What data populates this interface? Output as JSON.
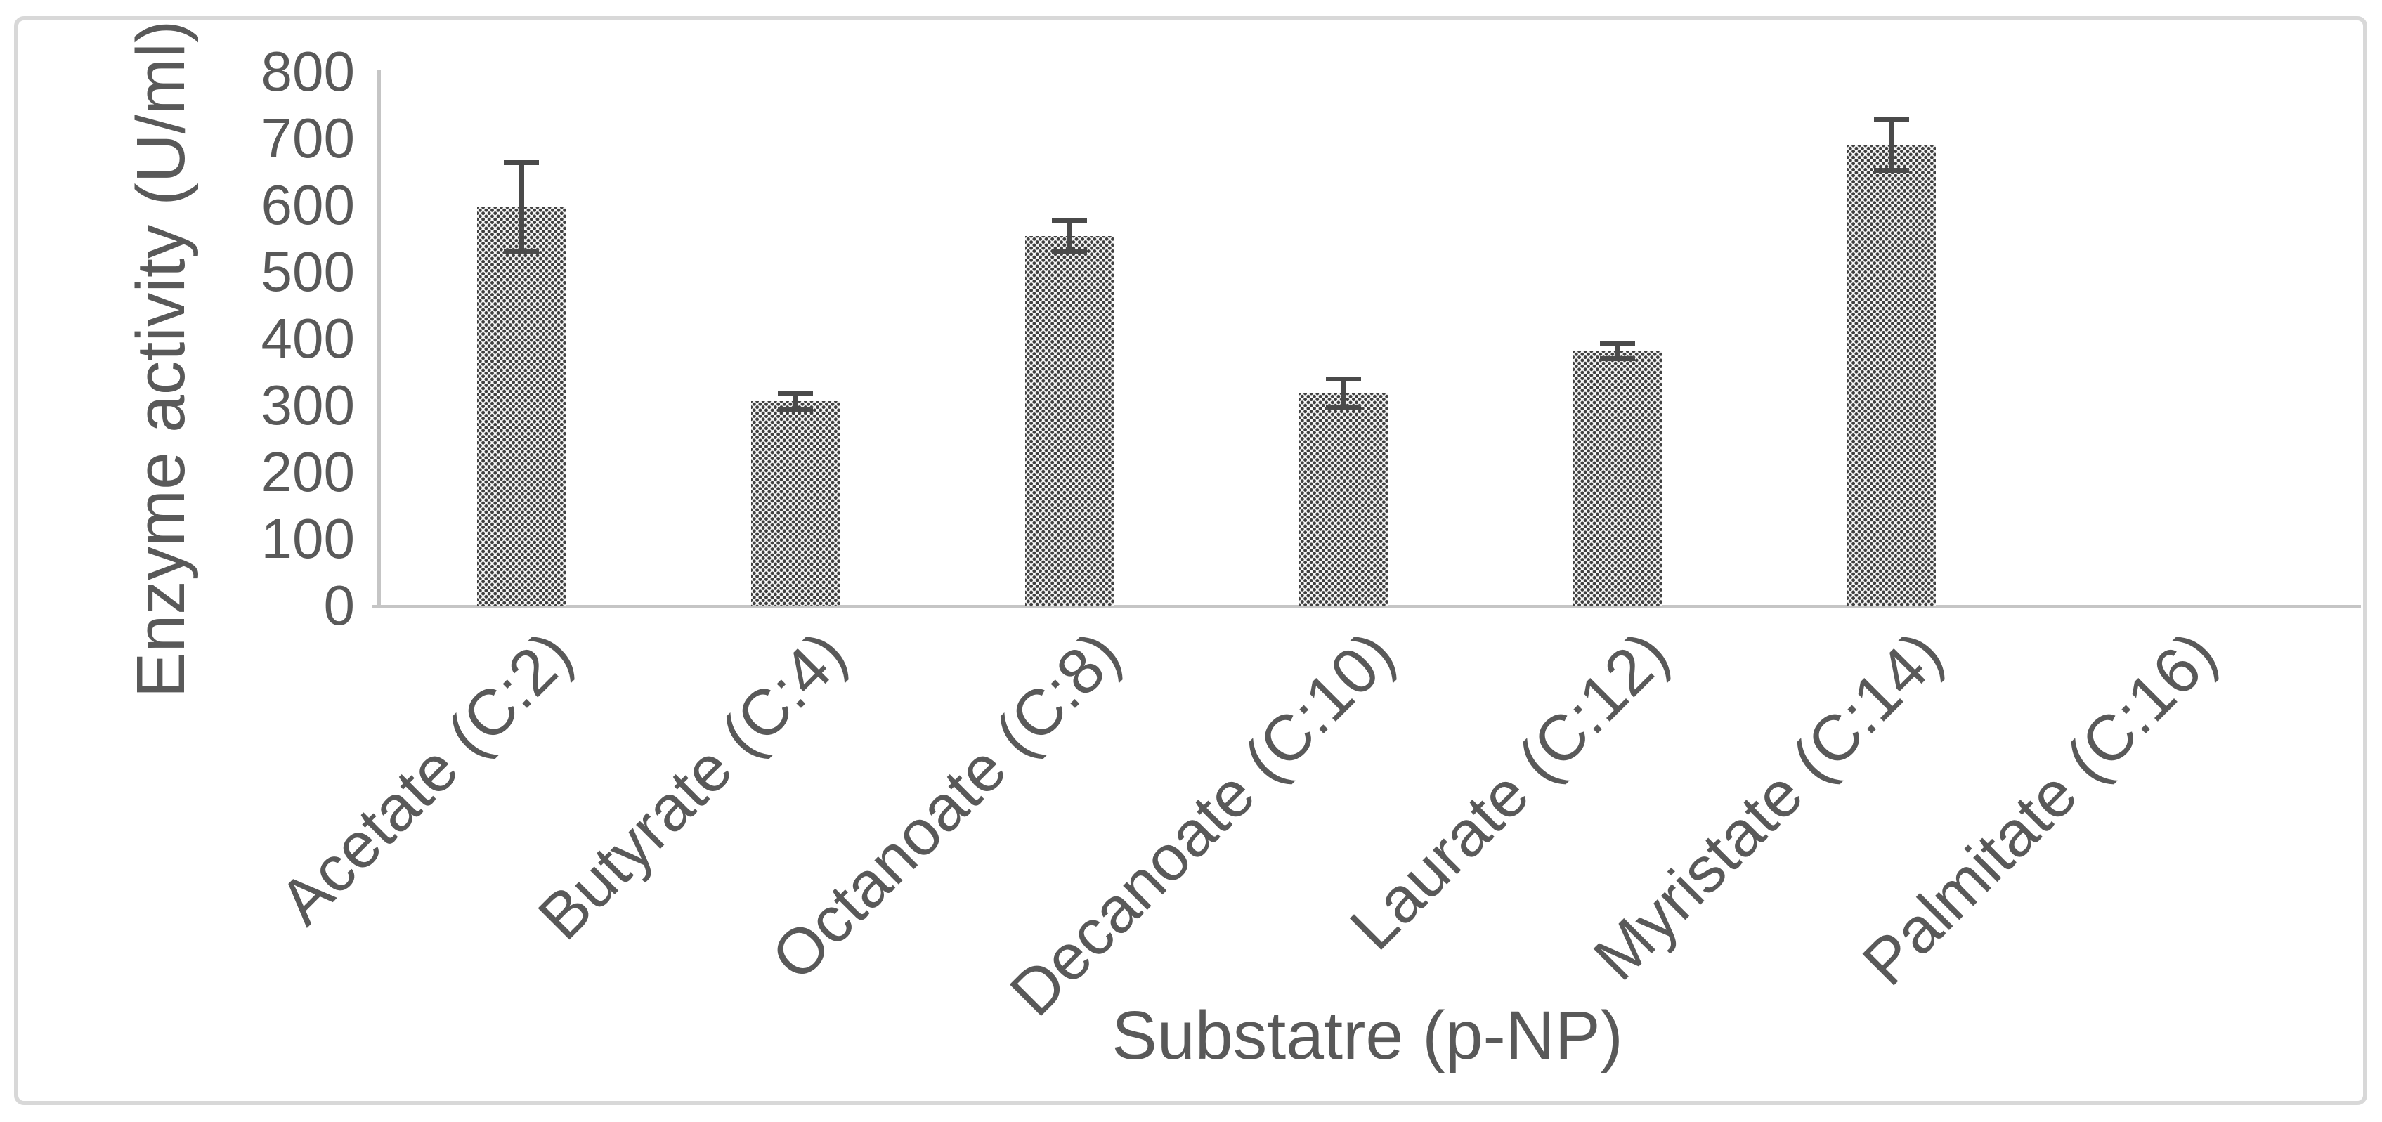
{
  "figure": {
    "background_color": "#ffffff",
    "border_color": "#d8d8d8"
  },
  "chart_data": {
    "type": "bar",
    "title": "",
    "xlabel": "Substatre (p-NP)",
    "ylabel": "Enzyme activity (U/ml)",
    "categories": [
      "Acetate (C:2)",
      "Butyrate (C:4)",
      "Octanoate (C:8)",
      "Decanoate (C:10)",
      "Laurate (C:12)",
      "Myristate (C:14)",
      "Palmitate (C:16)"
    ],
    "values": [
      597,
      306,
      554,
      318,
      381,
      690,
      0
    ],
    "error_bars": [
      67,
      13,
      24,
      22,
      12,
      38,
      0
    ],
    "ylim": [
      0,
      800
    ],
    "ytick_step": 100,
    "ytick_labels": [
      "0",
      "100",
      "200",
      "300",
      "400",
      "500",
      "600",
      "700",
      "800"
    ],
    "grid": false,
    "legend": null,
    "bar_fill": "dotted-pattern",
    "colors": {
      "text": "#595959",
      "axis_line": "#c5c5c5",
      "error_bar": "#4a4a4a",
      "pattern_dot": "#3f3f3f",
      "pattern_background": "#f7f7f7"
    }
  }
}
